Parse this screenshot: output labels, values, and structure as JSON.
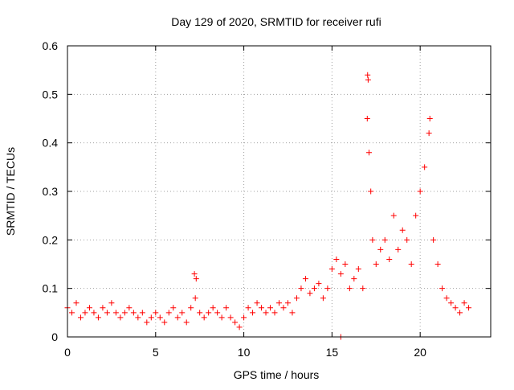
{
  "chart_data": {
    "type": "scatter",
    "title": "Day 129 of 2020, SRMTID for receiver rufi",
    "xlabel": "GPS time / hours",
    "ylabel": "SRMTID / TECUs",
    "xlim": [
      0,
      24
    ],
    "ylim": [
      0,
      0.6
    ],
    "x_ticks": [
      0,
      5,
      10,
      15,
      20
    ],
    "x_tick_labels": [
      "0",
      "5",
      "10",
      "15",
      "20"
    ],
    "y_ticks": [
      0,
      0.1,
      0.2,
      0.3,
      0.4,
      0.5,
      0.6
    ],
    "y_tick_labels": [
      "0",
      "0.1",
      "0.2",
      "0.3",
      "0.4",
      "0.5",
      "0.6"
    ],
    "grid": true,
    "marker": "plus",
    "color": "#ff0000",
    "series": [
      {
        "name": "SRMTID",
        "x": [
          0.0,
          0.25,
          0.5,
          0.75,
          1.0,
          1.25,
          1.5,
          1.75,
          2.0,
          2.25,
          2.5,
          2.75,
          3.0,
          3.25,
          3.5,
          3.75,
          4.0,
          4.25,
          4.5,
          4.75,
          5.0,
          5.25,
          5.5,
          5.75,
          6.0,
          6.25,
          6.5,
          6.75,
          7.0,
          7.25,
          7.5,
          7.75,
          8.0,
          8.25,
          8.5,
          8.75,
          9.0,
          9.25,
          9.5,
          9.75,
          10.0,
          10.25,
          10.5,
          10.75,
          11.0,
          11.25,
          11.5,
          11.75,
          12.0,
          12.25,
          12.5,
          12.75,
          13.0,
          13.25,
          13.5,
          13.75,
          14.0,
          14.25,
          14.5,
          14.75,
          15.0,
          15.25,
          15.5,
          15.75,
          16.0,
          16.25,
          16.5,
          16.75,
          17.0,
          17.05,
          17.1,
          17.2,
          17.3,
          17.5,
          17.75,
          18.0,
          18.25,
          18.5,
          18.75,
          19.0,
          19.25,
          19.5,
          19.75,
          20.0,
          20.25,
          20.5,
          20.55,
          20.75,
          21.0,
          21.25,
          21.5,
          21.75,
          22.0,
          22.25,
          22.5,
          22.75,
          7.2,
          7.3,
          15.5,
          17.02
        ],
        "y": [
          0.06,
          0.05,
          0.07,
          0.04,
          0.05,
          0.06,
          0.05,
          0.04,
          0.06,
          0.05,
          0.07,
          0.05,
          0.04,
          0.05,
          0.06,
          0.05,
          0.04,
          0.05,
          0.03,
          0.04,
          0.05,
          0.04,
          0.03,
          0.05,
          0.06,
          0.04,
          0.05,
          0.03,
          0.06,
          0.08,
          0.05,
          0.04,
          0.05,
          0.06,
          0.05,
          0.04,
          0.06,
          0.04,
          0.03,
          0.02,
          0.04,
          0.06,
          0.05,
          0.07,
          0.06,
          0.05,
          0.06,
          0.05,
          0.07,
          0.06,
          0.07,
          0.05,
          0.08,
          0.1,
          0.12,
          0.09,
          0.1,
          0.11,
          0.08,
          0.1,
          0.14,
          0.16,
          0.13,
          0.15,
          0.1,
          0.12,
          0.14,
          0.1,
          0.45,
          0.53,
          0.38,
          0.3,
          0.2,
          0.15,
          0.18,
          0.2,
          0.16,
          0.25,
          0.18,
          0.22,
          0.2,
          0.15,
          0.25,
          0.3,
          0.35,
          0.42,
          0.45,
          0.2,
          0.15,
          0.1,
          0.08,
          0.07,
          0.06,
          0.05,
          0.07,
          0.06,
          0.13,
          0.12,
          0.0,
          0.54
        ]
      }
    ]
  }
}
